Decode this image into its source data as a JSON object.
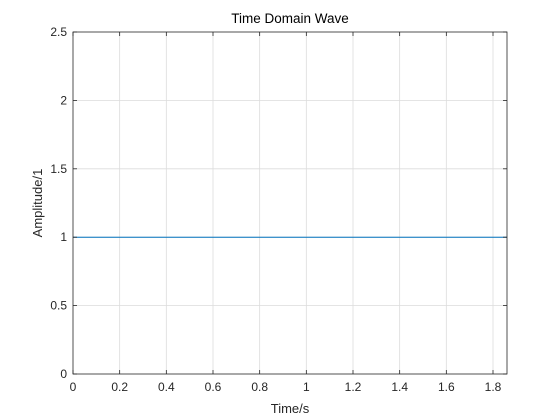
{
  "chart_data": {
    "type": "line",
    "title": "Time Domain Wave",
    "xlabel": "Time/s",
    "ylabel": "Amplitude/1",
    "xlim": [
      0,
      1.86
    ],
    "ylim": [
      0,
      2.5
    ],
    "xticks": [
      0,
      0.2,
      0.4,
      0.6,
      0.8,
      1,
      1.2,
      1.4,
      1.6,
      1.8
    ],
    "xtick_labels": [
      "0",
      "0.2",
      "0.4",
      "0.6",
      "0.8",
      "1",
      "1.2",
      "1.4",
      "1.6",
      "1.8"
    ],
    "yticks": [
      0,
      0.5,
      1,
      1.5,
      2,
      2.5
    ],
    "ytick_labels": [
      "0",
      "0.5",
      "1",
      "1.5",
      "2",
      "2.5"
    ],
    "grid": true,
    "series": [
      {
        "x": [
          0,
          1.86
        ],
        "y": [
          1,
          1
        ]
      }
    ],
    "colors": {
      "line": "#0072bd",
      "grid": "#dcdcdc",
      "axis": "#262626"
    }
  }
}
